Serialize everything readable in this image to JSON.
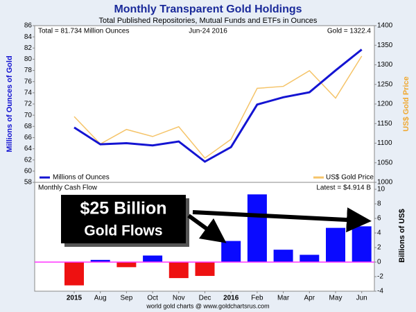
{
  "chart_data": [
    {
      "type": "line",
      "title": "Monthly Transparent Gold Holdings",
      "subtitle": "Total Published Repositories, Mutual Funds and ETFs in Ounces",
      "annotations": [
        "Total = 81.734 Million Ounces",
        "Jun-24 2016",
        "Gold = 1322.4"
      ],
      "y_label": "Millions of Ounces of Gold",
      "y2_label": "US$ Gold Price",
      "categories": [
        "2015",
        "Aug",
        "Sep",
        "Oct",
        "Nov",
        "Dec",
        "2016",
        "Feb",
        "Mar",
        "Apr",
        "May",
        "Jun"
      ],
      "series": [
        {
          "name": "Millions of Ounces",
          "color": "#1414d2",
          "values": [
            67.8,
            64.8,
            65.0,
            64.6,
            65.3,
            61.7,
            64.3,
            71.9,
            73.2,
            74.1,
            78.0,
            81.734
          ]
        },
        {
          "name": "US$ Gold Price",
          "color": "#f5c469",
          "axis": "y2",
          "values": [
            1168,
            1098,
            1135,
            1117,
            1142,
            1062,
            1110,
            1240,
            1245,
            1285,
            1215,
            1322.4
          ]
        }
      ],
      "ylim": [
        58,
        86
      ],
      "yticks": [
        58,
        60,
        62,
        64,
        66,
        68,
        70,
        72,
        74,
        76,
        78,
        80,
        82,
        84,
        86
      ],
      "y2lim": [
        1000,
        1400
      ],
      "y2ticks": [
        1000,
        1050,
        1100,
        1150,
        1200,
        1250,
        1300,
        1350,
        1400
      ]
    },
    {
      "type": "bar",
      "title": "Monthly Cash Flow",
      "annotations": [
        "Latest = $4.914 B",
        "$25 Billion",
        "Gold Flows"
      ],
      "y_label": "Billions of US$",
      "source": "world gold charts @ www.goldchartsrus.com",
      "categories": [
        "2015",
        "Aug",
        "Sep",
        "Oct",
        "Nov",
        "Dec",
        "2016",
        "Feb",
        "Mar",
        "Apr",
        "May",
        "Jun"
      ],
      "values": [
        -3.2,
        0.3,
        -0.7,
        0.9,
        -2.2,
        -1.9,
        2.9,
        9.3,
        1.7,
        1.0,
        4.7,
        4.914
      ],
      "positive_color": "#0a0aff",
      "negative_color": "#ee1111",
      "zero_line_color": "#ff33ff",
      "ylim": [
        -4,
        10
      ],
      "yticks": [
        -4,
        -2,
        0,
        2,
        4,
        6,
        8,
        10
      ]
    }
  ]
}
